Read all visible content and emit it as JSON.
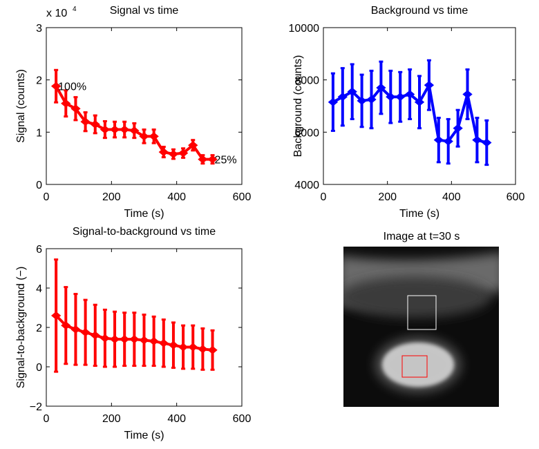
{
  "chart_data": [
    {
      "type": "line",
      "title": "Signal vs time",
      "xlabel": "Time (s)",
      "ylabel": "Signal (counts)",
      "y_exponent_label": {
        "base": "x 10",
        "power": "4"
      },
      "xlim": [
        0,
        600
      ],
      "xticks": [
        0,
        200,
        400,
        600
      ],
      "ylim": [
        0,
        30000
      ],
      "yticks": [
        {
          "value": 0,
          "label": "0"
        },
        {
          "value": 10000,
          "label": "1"
        },
        {
          "value": 20000,
          "label": "2"
        },
        {
          "value": 30000,
          "label": "3"
        }
      ],
      "x": [
        30,
        60,
        90,
        120,
        150,
        180,
        210,
        240,
        270,
        300,
        330,
        360,
        390,
        420,
        450,
        480,
        510
      ],
      "series": [
        {
          "color": "#ff0000",
          "values": [
            18800,
            15500,
            14500,
            12000,
            11500,
            10500,
            10500,
            10500,
            10300,
            9200,
            9200,
            6200,
            5800,
            6000,
            7500,
            4800,
            4800
          ],
          "errors": [
            3100,
            2500,
            2200,
            1800,
            1700,
            1600,
            1500,
            1500,
            1400,
            1300,
            1300,
            1000,
            900,
            900,
            1000,
            800,
            800
          ]
        }
      ],
      "annotations": [
        "100%",
        "25%"
      ]
    },
    {
      "type": "line",
      "title": "Background vs time",
      "xlabel": "Time (s)",
      "ylabel": "Background (counts)",
      "xlim": [
        0,
        600
      ],
      "xticks": [
        0,
        200,
        400,
        600
      ],
      "ylim": [
        4000,
        10000
      ],
      "yticks": [
        4000,
        6000,
        8000,
        10000
      ],
      "x": [
        30,
        60,
        90,
        120,
        150,
        180,
        210,
        240,
        270,
        300,
        330,
        360,
        390,
        420,
        450,
        480,
        510
      ],
      "series": [
        {
          "color": "#0000ff",
          "values": [
            7150,
            7350,
            7550,
            7200,
            7250,
            7700,
            7350,
            7350,
            7450,
            7150,
            7800,
            5700,
            5650,
            6150,
            7450,
            5700,
            5600
          ],
          "errors": [
            1100,
            1100,
            1050,
            1000,
            1100,
            1000,
            1000,
            950,
            950,
            1000,
            950,
            850,
            850,
            700,
            950,
            850,
            850
          ]
        }
      ]
    },
    {
      "type": "line",
      "title": "Signal-to-background vs time",
      "xlabel": "Time (s)",
      "ylabel": "Signal-to-background (−)",
      "xlim": [
        0,
        600
      ],
      "xticks": [
        0,
        200,
        400,
        600
      ],
      "ylim": [
        -2,
        6
      ],
      "yticks": [
        {
          "value": -2,
          "label": "−2"
        },
        0,
        2,
        4,
        6
      ],
      "x": [
        30,
        60,
        90,
        120,
        150,
        180,
        210,
        240,
        270,
        300,
        330,
        360,
        390,
        420,
        450,
        480,
        510
      ],
      "series": [
        {
          "color": "#ff0000",
          "values": [
            2.6,
            2.1,
            1.9,
            1.75,
            1.6,
            1.45,
            1.4,
            1.4,
            1.4,
            1.35,
            1.3,
            1.2,
            1.1,
            1.0,
            1.0,
            0.9,
            0.85
          ],
          "errors": [
            2.85,
            1.95,
            1.8,
            1.65,
            1.55,
            1.45,
            1.4,
            1.35,
            1.35,
            1.3,
            1.25,
            1.2,
            1.15,
            1.1,
            1.1,
            1.05,
            1.0
          ]
        }
      ]
    }
  ],
  "image": {
    "title": "Image at t=30 s"
  }
}
